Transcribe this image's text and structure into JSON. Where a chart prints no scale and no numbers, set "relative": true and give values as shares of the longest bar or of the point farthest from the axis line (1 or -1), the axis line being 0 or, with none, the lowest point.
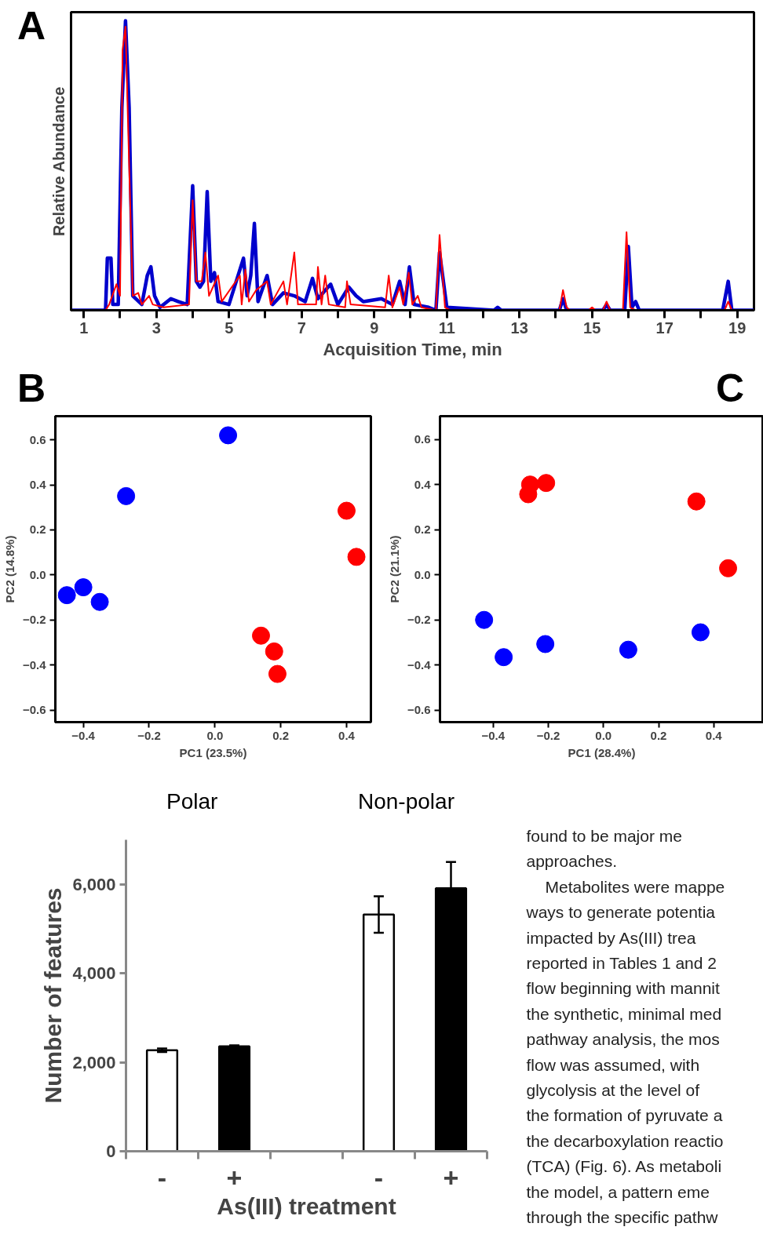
{
  "chart_data": [
    {
      "type": "line",
      "relative": true,
      "xlabel": "Acquisition Time, min",
      "ylabel": "Relative Abundance",
      "annotations": [
        "A"
      ],
      "grid": false,
      "legend": false,
      "line_style": "solid",
      "marker": "none",
      "xlim": [
        0.65,
        19.46
      ],
      "xticks": [
        1,
        {
          "value": 2,
          "label": null
        },
        3,
        {
          "value": 4,
          "label": null
        },
        5,
        {
          "value": 6,
          "label": null
        },
        7,
        {
          "value": 8,
          "label": null
        },
        9,
        {
          "value": 10,
          "label": null
        },
        11,
        {
          "value": 12,
          "label": null
        },
        13,
        {
          "value": 14,
          "label": null
        },
        15,
        {
          "value": 16,
          "label": null
        },
        17,
        {
          "value": 18,
          "label": null
        },
        19
      ],
      "series": [
        {
          "color": "#0000cc",
          "x": [
            0.65,
            1.6,
            1.65,
            1.75,
            1.8,
            1.95,
            2.05,
            2.15,
            2.25,
            2.35,
            2.6,
            2.75,
            2.85,
            2.95,
            3.1,
            3.4,
            3.6,
            3.85,
            4.0,
            4.1,
            4.2,
            4.3,
            4.4,
            4.5,
            4.6,
            4.7,
            5.0,
            5.4,
            5.5,
            5.6,
            5.7,
            5.8,
            6.05,
            6.2,
            6.5,
            6.8,
            7.1,
            7.3,
            7.45,
            7.8,
            8.0,
            8.3,
            8.5,
            8.7,
            9.2,
            9.5,
            9.7,
            9.85,
            9.97,
            10.1,
            10.5,
            10.7,
            10.8,
            11.0,
            12.3,
            12.4,
            12.5,
            14.1,
            14.2,
            14.3,
            15.3,
            15.4,
            15.5,
            15.9,
            16.0,
            16.1,
            16.2,
            16.3,
            18.6,
            18.75,
            18.85,
            19.46
          ],
          "values": [
            0,
            0,
            0.18,
            0.18,
            0.02,
            0.02,
            0.7,
            1.0,
            0.7,
            0.05,
            0.02,
            0.12,
            0.15,
            0.05,
            0.01,
            0.04,
            0.03,
            0.02,
            0.43,
            0.1,
            0.08,
            0.1,
            0.41,
            0.1,
            0.13,
            0.03,
            0.02,
            0.18,
            0.05,
            0.12,
            0.3,
            0.03,
            0.12,
            0.02,
            0.06,
            0.05,
            0.03,
            0.11,
            0.04,
            0.09,
            0.02,
            0.08,
            0.05,
            0.03,
            0.04,
            0.02,
            0.1,
            0.02,
            0.15,
            0.02,
            0.01,
            0,
            0.2,
            0.01,
            0,
            0.01,
            0,
            0,
            0.04,
            0,
            0,
            0.02,
            0,
            0,
            0.22,
            0.01,
            0.03,
            0,
            0,
            0.1,
            0,
            0
          ]
        },
        {
          "color": "#ff0000",
          "x": [
            0.65,
            1.6,
            1.7,
            1.9,
            2.0,
            2.07,
            2.15,
            2.25,
            2.35,
            2.5,
            2.6,
            2.8,
            2.9,
            3.2,
            3.9,
            4.0,
            4.1,
            4.25,
            4.35,
            4.45,
            4.7,
            4.8,
            5.3,
            5.35,
            5.45,
            5.55,
            5.75,
            6.05,
            6.15,
            6.5,
            6.6,
            6.8,
            6.9,
            7.4,
            7.45,
            7.55,
            7.65,
            7.75,
            8.2,
            8.25,
            8.35,
            9.3,
            9.4,
            9.5,
            9.7,
            9.8,
            9.95,
            10.05,
            10.2,
            10.3,
            10.7,
            10.8,
            10.95,
            11.1,
            14.1,
            14.2,
            14.3,
            14.4,
            14.9,
            15.0,
            15.1,
            15.3,
            15.4,
            15.5,
            15.85,
            15.95,
            16.05,
            16.2,
            18.65,
            18.75,
            18.85,
            19.46
          ],
          "values": [
            0,
            0,
            0.02,
            0.09,
            0.05,
            0.9,
            0.98,
            0.5,
            0.05,
            0.06,
            0.02,
            0.05,
            0.02,
            0.01,
            0.02,
            0.38,
            0.1,
            0.1,
            0.2,
            0.05,
            0.12,
            0.03,
            0.12,
            0.02,
            0.14,
            0.03,
            0.07,
            0.1,
            0.02,
            0.1,
            0.02,
            0.2,
            0.02,
            0.02,
            0.15,
            0.02,
            0.12,
            0.02,
            0.01,
            0.1,
            0.02,
            0.01,
            0.12,
            0.01,
            0.08,
            0.02,
            0.13,
            0.02,
            0.05,
            0.01,
            0,
            0.26,
            0.01,
            0,
            0,
            0.07,
            0.01,
            0,
            0,
            0.01,
            0,
            0,
            0.03,
            0,
            0,
            0.27,
            0.01,
            0,
            0,
            0.03,
            0,
            0
          ]
        }
      ]
    },
    {
      "type": "scatter",
      "xlabel": "PC1 (23.5%)",
      "ylabel": "PC2 (14.8%)",
      "annotations": [
        "B"
      ],
      "grid": false,
      "legend": false,
      "marker": "circle",
      "xlim": [
        -0.485,
        0.474
      ],
      "ylim": [
        -0.654,
        0.705
      ],
      "xticks": [
        {
          "value": -0.4,
          "label": "−0.4"
        },
        {
          "value": -0.2,
          "label": "−0.2"
        },
        {
          "value": 0,
          "label": "0.0"
        },
        0.2,
        0.4
      ],
      "yticks": [
        {
          "value": -0.6,
          "label": "−0.6"
        },
        {
          "value": -0.4,
          "label": "−0.4"
        },
        {
          "value": -0.2,
          "label": "−0.2"
        },
        {
          "value": 0,
          "label": "0.0"
        },
        0.2,
        0.4,
        0.6
      ],
      "series": [
        {
          "color": "#0000ff",
          "x": [
            0.04,
            -0.27,
            -0.45,
            -0.4,
            -0.35
          ],
          "values": [
            0.62,
            0.35,
            -0.09,
            -0.055,
            -0.12
          ]
        },
        {
          "color": "#ff0000",
          "x": [
            0.4,
            0.43,
            0.14,
            0.18,
            0.19
          ],
          "values": [
            0.285,
            0.08,
            -0.27,
            -0.34,
            -0.44
          ]
        }
      ]
    },
    {
      "type": "scatter",
      "xlabel": "PC1 (28.4%)",
      "ylabel": "PC2 (21.1%)",
      "annotations": [
        "C"
      ],
      "grid": false,
      "legend": false,
      "marker": "circle",
      "xlim": [
        -0.593,
        0.58
      ],
      "ylim": [
        -0.653,
        0.703
      ],
      "xticks": [
        {
          "value": -0.4,
          "label": "−0.4"
        },
        {
          "value": -0.2,
          "label": "−0.2"
        },
        {
          "value": 0,
          "label": "0.0"
        },
        0.2,
        0.4
      ],
      "yticks": [
        {
          "value": -0.6,
          "label": "−0.6"
        },
        {
          "value": -0.4,
          "label": "−0.4"
        },
        {
          "value": -0.2,
          "label": "−0.2"
        },
        {
          "value": 0,
          "label": "0.0"
        },
        0.2,
        0.4,
        0.6
      ],
      "series": [
        {
          "color": "#ff0000",
          "x": [
            -0.266,
            -0.273,
            -0.208,
            0.337,
            0.452
          ],
          "values": [
            0.4,
            0.357,
            0.407,
            0.325,
            0.029
          ]
        },
        {
          "color": "#0000ff",
          "x": [
            -0.433,
            -0.362,
            -0.211,
            0.09,
            0.352
          ],
          "values": [
            -0.2,
            -0.365,
            -0.307,
            -0.332,
            -0.255
          ]
        }
      ]
    },
    {
      "type": "bar",
      "xlabel": "As(III) treatment",
      "ylabel": "Number of features",
      "annotations": [
        "Polar",
        "Non-polar"
      ],
      "grid": false,
      "legend": false,
      "categories": [
        "-",
        "+",
        null,
        "-",
        "+"
      ],
      "values": [
        2270,
        2360,
        null,
        5320,
        5910
      ],
      "errors": [
        40,
        20,
        null,
        410,
        590
      ],
      "colors": [
        "#ffffff",
        "#000000",
        "#ffffff",
        "#ffffff",
        "#000000"
      ],
      "ylim": [
        0,
        7000
      ],
      "yticks": [
        0,
        {
          "value": 2000,
          "label": "2,000"
        },
        {
          "value": 4000,
          "label": "4,000"
        },
        {
          "value": 6000,
          "label": "6,000"
        }
      ]
    },
    {
      "type": "other",
      "annotations": [
        "found to be major me",
        "approaches.",
        "Metabolites were mappe",
        "ways to generate potentia",
        "impacted by As(III) trea",
        "reported in Tables 1 and 2",
        "flow beginning with mannit",
        "the synthetic, minimal med",
        "pathway analysis, the mos",
        "flow was assumed, with",
        "glycolysis at the level of",
        "the formation of pyruvate a",
        "the decarboxylation reactio",
        "(TCA) (Fig. 6). As metaboli",
        "the model, a pattern eme",
        "through the specific pathw"
      ]
    }
  ]
}
